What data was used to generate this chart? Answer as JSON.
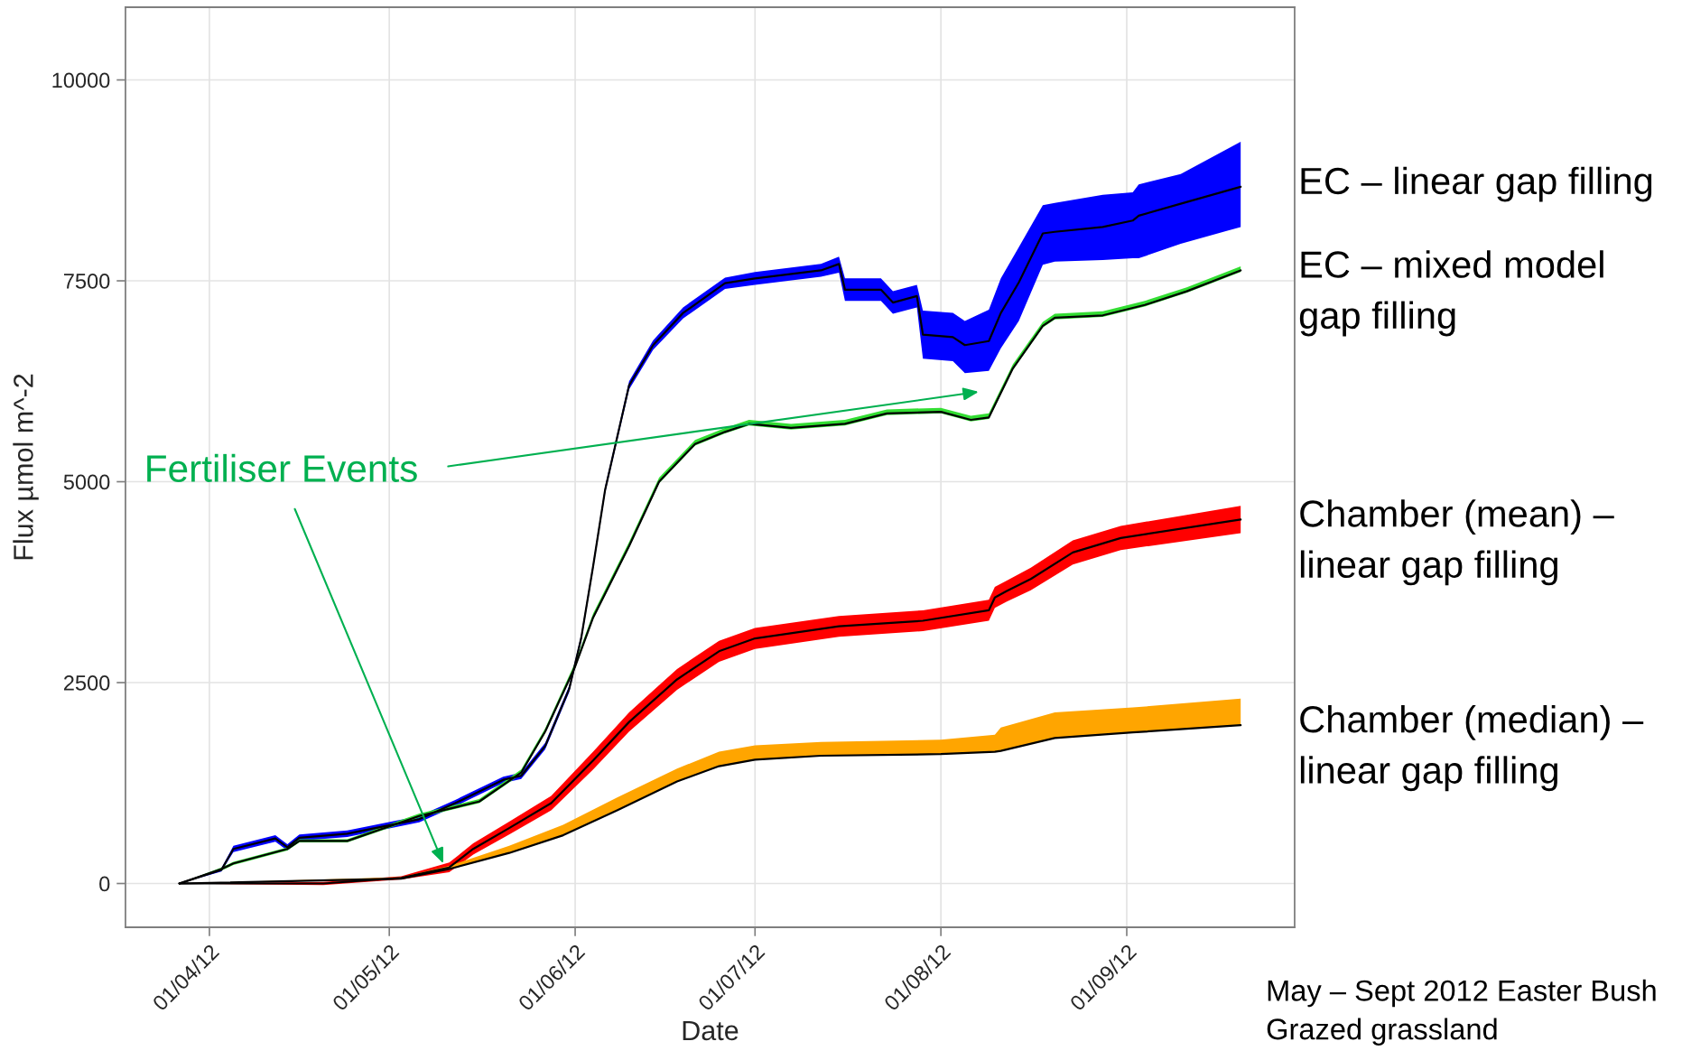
{
  "chart_data": {
    "type": "line",
    "xlabel": "Date",
    "ylabel": "Flux µmol m^-2",
    "xlim": [
      "2012-03-18",
      "2012-09-29"
    ],
    "xticks": [
      {
        "value": "2012-04-01",
        "label": "01/04/12"
      },
      {
        "value": "2012-05-01",
        "label": "01/05/12"
      },
      {
        "value": "2012-06-01",
        "label": "01/06/12"
      },
      {
        "value": "2012-07-01",
        "label": "01/07/12"
      },
      {
        "value": "2012-08-01",
        "label": "01/08/12"
      },
      {
        "value": "2012-09-01",
        "label": "01/09/12"
      }
    ],
    "ylim": [
      -545,
      10905
    ],
    "yticks": [
      0,
      2500,
      5000,
      7500,
      10000
    ],
    "grid": true,
    "series": [
      {
        "color": "#0000ff",
        "x": [
          "2012-03-27",
          "2012-04-03",
          "2012-04-05",
          "2012-04-12",
          "2012-04-14",
          "2012-04-16",
          "2012-04-24",
          "2012-05-06",
          "2012-05-12",
          "2012-05-20",
          "2012-05-23",
          "2012-05-27",
          "2012-05-31",
          "2012-06-02",
          "2012-06-04",
          "2012-06-06",
          "2012-06-08",
          "2012-06-10",
          "2012-06-14",
          "2012-06-19",
          "2012-06-26",
          "2012-07-01",
          "2012-07-12",
          "2012-07-15",
          "2012-07-16",
          "2012-07-22",
          "2012-07-24",
          "2012-07-28",
          "2012-07-29",
          "2012-08-03",
          "2012-08-05",
          "2012-08-09",
          "2012-08-11",
          "2012-08-14",
          "2012-08-18",
          "2012-08-20",
          "2012-08-28",
          "2012-09-02",
          "2012-09-03",
          "2012-09-10",
          "2012-09-20"
        ],
        "values": [
          null,
          null,
          null,
          null,
          null,
          null,
          null,
          null,
          null,
          null,
          null,
          null,
          null,
          null,
          null,
          null,
          null,
          null,
          null,
          null,
          null,
          null,
          null,
          null,
          null,
          null,
          null,
          null,
          null,
          null,
          null,
          null,
          null,
          null,
          null,
          null,
          null,
          null,
          null,
          null,
          null
        ],
        "lower": [
          0,
          150,
          390,
          520,
          410,
          530,
          580,
          760,
          960,
          1250,
          1300,
          1670,
          2380,
          3010,
          3910,
          4860,
          5510,
          6150,
          6640,
          7030,
          7400,
          7450,
          7550,
          7600,
          7250,
          7250,
          7090,
          7170,
          6530,
          6500,
          6350,
          6380,
          6660,
          7000,
          7700,
          7740,
          7760,
          7780,
          7780,
          7960,
          8170
        ],
        "upper": [
          0,
          190,
          470,
          600,
          490,
          610,
          660,
          840,
          1040,
          1330,
          1380,
          1750,
          2460,
          3090,
          3990,
          4940,
          5590,
          6250,
          6760,
          7170,
          7540,
          7610,
          7710,
          7800,
          7530,
          7530,
          7370,
          7450,
          7130,
          7100,
          7000,
          7140,
          7530,
          7920,
          8440,
          8470,
          8570,
          8600,
          8700,
          8830,
          9230
        ]
      },
      {
        "name": "EC – linear gap filling",
        "color": "#000000",
        "x": [
          "2012-03-27",
          "2012-04-03",
          "2012-04-05",
          "2012-04-12",
          "2012-04-14",
          "2012-04-16",
          "2012-04-24",
          "2012-05-06",
          "2012-05-12",
          "2012-05-20",
          "2012-05-23",
          "2012-05-27",
          "2012-05-31",
          "2012-06-02",
          "2012-06-04",
          "2012-06-06",
          "2012-06-08",
          "2012-06-10",
          "2012-06-14",
          "2012-06-19",
          "2012-06-26",
          "2012-07-01",
          "2012-07-12",
          "2012-07-15",
          "2012-07-16",
          "2012-07-22",
          "2012-07-24",
          "2012-07-28",
          "2012-07-29",
          "2012-08-03",
          "2012-08-05",
          "2012-08-09",
          "2012-08-11",
          "2012-08-14",
          "2012-08-18",
          "2012-08-20",
          "2012-08-28",
          "2012-09-02",
          "2012-09-03",
          "2012-09-10",
          "2012-09-20"
        ],
        "values": [
          0,
          170,
          430,
          560,
          450,
          570,
          620,
          800,
          1000,
          1290,
          1340,
          1710,
          2420,
          3050,
          3950,
          4900,
          5550,
          6200,
          6700,
          7100,
          7470,
          7530,
          7630,
          7710,
          7390,
          7390,
          7230,
          7310,
          6830,
          6800,
          6700,
          6750,
          7100,
          7480,
          8090,
          8110,
          8170,
          8250,
          8310,
          8460,
          8670
        ]
      },
      {
        "color": "#33dd33",
        "x": [
          "2012-03-27",
          "2012-04-03",
          "2012-04-05",
          "2012-04-14",
          "2012-04-16",
          "2012-04-24",
          "2012-05-06",
          "2012-05-16",
          "2012-05-23",
          "2012-05-27",
          "2012-06-01",
          "2012-06-04",
          "2012-06-10",
          "2012-06-15",
          "2012-06-21",
          "2012-06-26",
          "2012-06-30",
          "2012-07-07",
          "2012-07-16",
          "2012-07-23",
          "2012-08-01",
          "2012-08-06",
          "2012-08-09",
          "2012-08-13",
          "2012-08-18",
          "2012-08-20",
          "2012-08-28",
          "2012-09-04",
          "2012-09-11",
          "2012-09-20"
        ],
        "values": [
          null,
          null,
          null,
          null,
          null,
          null,
          null,
          null,
          null,
          null,
          null,
          null,
          null,
          null,
          null,
          null,
          null,
          null,
          null,
          null,
          null,
          null,
          null,
          null,
          null,
          null,
          null,
          null,
          null,
          null
        ],
        "lower": [
          0,
          160,
          230,
          410,
          510,
          510,
          820,
          1000,
          1360,
          1870,
          2680,
          3290,
          4180,
          4980,
          5450,
          5600,
          5700,
          5650,
          5700,
          5830,
          5850,
          5750,
          5780,
          6390,
          6920,
          7020,
          7050,
          7180,
          7350,
          7610
        ],
        "upper": [
          0,
          200,
          270,
          450,
          550,
          550,
          870,
          1050,
          1420,
          1930,
          2750,
          3360,
          4250,
          5050,
          5520,
          5670,
          5770,
          5720,
          5770,
          5900,
          5920,
          5820,
          5850,
          6460,
          6990,
          7090,
          7120,
          7250,
          7420,
          7680
        ]
      },
      {
        "name": "EC – mixed model\ngap filling",
        "color": "#000000",
        "x": [
          "2012-03-27",
          "2012-04-03",
          "2012-04-05",
          "2012-04-14",
          "2012-04-16",
          "2012-04-24",
          "2012-05-06",
          "2012-05-16",
          "2012-05-23",
          "2012-05-27",
          "2012-06-01",
          "2012-06-04",
          "2012-06-10",
          "2012-06-15",
          "2012-06-21",
          "2012-06-26",
          "2012-06-30",
          "2012-07-07",
          "2012-07-16",
          "2012-07-23",
          "2012-08-01",
          "2012-08-06",
          "2012-08-09",
          "2012-08-13",
          "2012-08-18",
          "2012-08-20",
          "2012-08-28",
          "2012-09-04",
          "2012-09-11",
          "2012-09-20"
        ],
        "values": [
          0,
          180,
          250,
          430,
          530,
          530,
          840,
          1020,
          1380,
          1890,
          2700,
          3310,
          4200,
          5000,
          5470,
          5620,
          5720,
          5670,
          5720,
          5850,
          5870,
          5770,
          5800,
          6410,
          6940,
          7040,
          7070,
          7200,
          7370,
          7630
        ]
      },
      {
        "color": "#ff0000",
        "x": [
          "2012-03-27",
          "2012-04-20",
          "2012-05-03",
          "2012-05-11",
          "2012-05-15",
          "2012-05-21",
          "2012-05-28",
          "2012-06-04",
          "2012-06-10",
          "2012-06-18",
          "2012-06-25",
          "2012-07-01",
          "2012-07-15",
          "2012-07-29",
          "2012-08-09",
          "2012-08-10",
          "2012-08-12",
          "2012-08-16",
          "2012-08-23",
          "2012-08-31",
          "2012-09-20"
        ],
        "values": [
          null,
          null,
          null,
          null,
          null,
          null,
          null,
          null,
          null,
          null,
          null,
          null,
          null,
          null,
          null,
          null,
          null,
          null,
          null,
          null,
          null
        ],
        "lower": [
          0,
          -20,
          50,
          140,
          360,
          610,
          910,
          1420,
          1890,
          2410,
          2760,
          2920,
          3070,
          3140,
          3270,
          3430,
          3510,
          3650,
          3970,
          4150,
          4360
        ],
        "upper": [
          0,
          20,
          90,
          260,
          500,
          770,
          1090,
          1640,
          2130,
          2670,
          3020,
          3180,
          3330,
          3400,
          3530,
          3690,
          3770,
          3930,
          4270,
          4450,
          4700
        ]
      },
      {
        "name": "Chamber (mean) –\nlinear gap filling",
        "color": "#000000",
        "x": [
          "2012-03-27",
          "2012-04-20",
          "2012-05-03",
          "2012-05-11",
          "2012-05-15",
          "2012-05-21",
          "2012-05-28",
          "2012-06-04",
          "2012-06-10",
          "2012-06-18",
          "2012-06-25",
          "2012-07-01",
          "2012-07-15",
          "2012-07-29",
          "2012-08-09",
          "2012-08-10",
          "2012-08-12",
          "2012-08-16",
          "2012-08-23",
          "2012-08-31",
          "2012-09-20"
        ],
        "values": [
          0,
          0,
          70,
          200,
          430,
          690,
          1000,
          1530,
          2010,
          2540,
          2890,
          3050,
          3200,
          3270,
          3400,
          3560,
          3640,
          3790,
          4120,
          4300,
          4530
        ]
      },
      {
        "color": "#ffa500",
        "x": [
          "2012-03-27",
          "2012-05-03",
          "2012-05-11",
          "2012-05-21",
          "2012-05-30",
          "2012-06-08",
          "2012-06-18",
          "2012-06-25",
          "2012-07-01",
          "2012-07-12",
          "2012-08-01",
          "2012-08-10",
          "2012-08-11",
          "2012-08-20",
          "2012-09-02",
          "2012-09-20"
        ],
        "values": [
          null,
          null,
          null,
          null,
          null,
          null,
          null,
          null,
          null,
          null,
          null,
          null,
          null,
          null,
          null,
          null
        ],
        "lower": [
          0,
          60,
          180,
          380,
          600,
          910,
          1270,
          1460,
          1540,
          1590,
          1610,
          1640,
          1650,
          1810,
          1880,
          1970
        ],
        "upper": [
          0,
          80,
          220,
          470,
          730,
          1070,
          1430,
          1640,
          1720,
          1760,
          1790,
          1850,
          1940,
          2130,
          2190,
          2300
        ]
      },
      {
        "name": "Chamber (median) –\nlinear gap filling",
        "color": "#000000",
        "x": [
          "2012-03-27",
          "2012-05-03",
          "2012-05-11",
          "2012-05-21",
          "2012-05-30",
          "2012-06-08",
          "2012-06-18",
          "2012-06-25",
          "2012-07-01",
          "2012-07-12",
          "2012-08-01",
          "2012-08-10",
          "2012-08-11",
          "2012-08-20",
          "2012-09-02",
          "2012-09-20"
        ],
        "values": [
          0,
          60,
          180,
          380,
          600,
          910,
          1270,
          1460,
          1540,
          1590,
          1610,
          1640,
          1650,
          1810,
          1880,
          1970
        ]
      }
    ],
    "annotations": [
      {
        "text": "Fertiliser Events",
        "x": "2012-05-10",
        "y": 250
      },
      "May – Sept 2012 Easter Bush\nGrazed grassland"
    ]
  }
}
